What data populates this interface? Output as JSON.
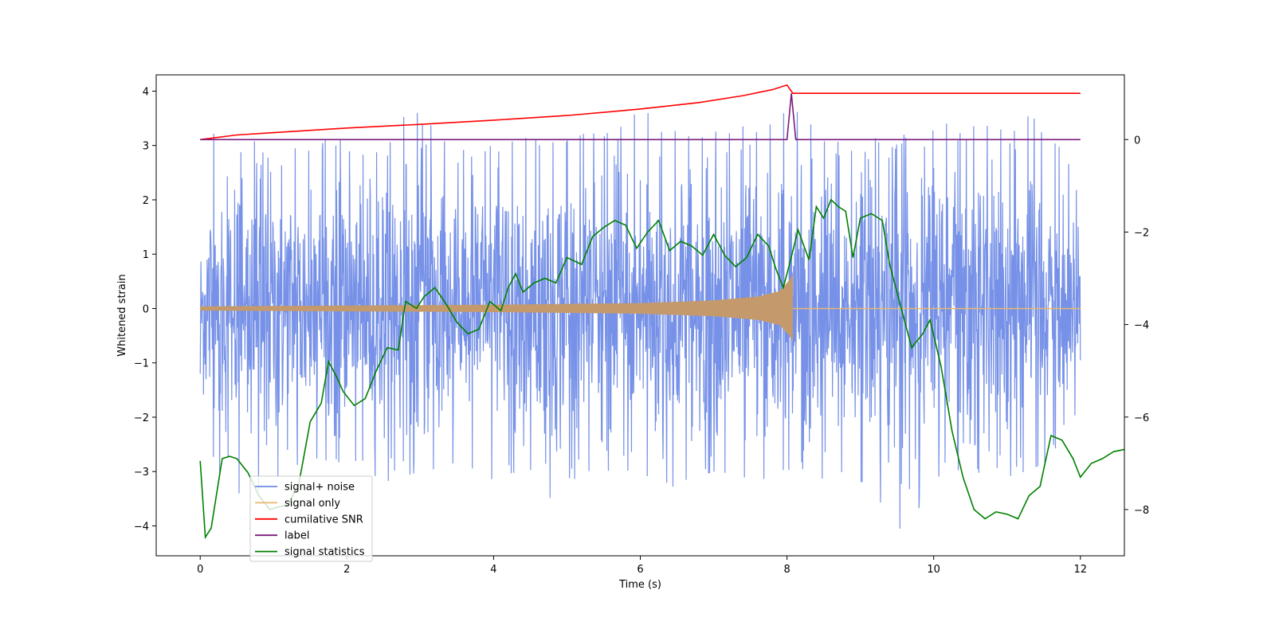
{
  "chart_data": {
    "type": "line",
    "title": "",
    "xlabel": "Time (s)",
    "ylabel": "Whitened strain",
    "ylabel_right": "",
    "xlim": [
      -0.6,
      12.6
    ],
    "ylim": [
      -4.55,
      4.3
    ],
    "ylim_right": [
      -9.0,
      1.4
    ],
    "xticks": [
      0,
      2,
      4,
      6,
      8,
      10,
      12
    ],
    "yticks": [
      -4,
      -3,
      -2,
      -1,
      0,
      1,
      2,
      3,
      4
    ],
    "yticks_right": [
      -8,
      -6,
      -4,
      -2,
      0
    ],
    "grid": false,
    "legend_position": "lower-left",
    "series": [
      {
        "name": "signal+ noise",
        "axis": "left",
        "color": "#6f8be6",
        "x_range": [
          0,
          12
        ],
        "envelope_upper": [
          [
            0.0,
            1.8
          ],
          [
            0.12,
            3.55
          ],
          [
            0.4,
            2.5
          ],
          [
            0.65,
            3.38
          ],
          [
            1.0,
            2.7
          ],
          [
            1.4,
            3.1
          ],
          [
            2.0,
            3.1
          ],
          [
            2.5,
            3.0
          ],
          [
            2.9,
            3.8
          ],
          [
            3.5,
            2.9
          ],
          [
            4.0,
            3.0
          ],
          [
            4.5,
            3.2
          ],
          [
            5.0,
            3.1
          ],
          [
            5.6,
            3.4
          ],
          [
            6.0,
            3.8
          ],
          [
            6.6,
            3.2
          ],
          [
            7.3,
            3.3
          ],
          [
            8.0,
            3.8
          ],
          [
            8.5,
            3.3
          ],
          [
            9.0,
            3.1
          ],
          [
            9.6,
            3.2
          ],
          [
            10.0,
            3.5
          ],
          [
            10.8,
            3.4
          ],
          [
            11.3,
            3.6
          ],
          [
            11.7,
            3.0
          ],
          [
            12.0,
            2.3
          ]
        ],
        "envelope_lower": [
          [
            0.0,
            -1.2
          ],
          [
            0.2,
            -2.9
          ],
          [
            0.5,
            -3.6
          ],
          [
            0.8,
            -3.4
          ],
          [
            1.2,
            -3.0
          ],
          [
            1.6,
            -2.9
          ],
          [
            2.0,
            -2.8
          ],
          [
            2.5,
            -3.2
          ],
          [
            3.0,
            -3.0
          ],
          [
            3.5,
            -2.9
          ],
          [
            4.0,
            -3.4
          ],
          [
            4.4,
            -3.0
          ],
          [
            4.78,
            -3.6
          ],
          [
            5.2,
            -3.0
          ],
          [
            5.8,
            -3.2
          ],
          [
            6.4,
            -3.3
          ],
          [
            7.0,
            -3.0
          ],
          [
            7.5,
            -3.2
          ],
          [
            8.0,
            -3.1
          ],
          [
            8.5,
            -3.3
          ],
          [
            9.0,
            -3.2
          ],
          [
            9.6,
            -4.15
          ],
          [
            10.0,
            -3.2
          ],
          [
            10.5,
            -3.0
          ],
          [
            11.0,
            -3.1
          ],
          [
            11.5,
            -2.9
          ],
          [
            12.0,
            -2.0
          ]
        ]
      },
      {
        "name": "signal only",
        "axis": "left",
        "color": "#e8b86d",
        "fill_color": "#c49a6c",
        "x_range": [
          0,
          12
        ],
        "chirp_end": 8.08,
        "amplitude_points": [
          [
            0.0,
            0.04
          ],
          [
            4.0,
            0.07
          ],
          [
            6.0,
            0.1
          ],
          [
            7.0,
            0.15
          ],
          [
            7.6,
            0.22
          ],
          [
            7.9,
            0.32
          ],
          [
            8.05,
            0.55
          ],
          [
            8.08,
            0.65
          ]
        ]
      },
      {
        "name": "cumilative SNR",
        "axis": "right",
        "color": "#ff0000",
        "points": [
          [
            0.0,
            0.0
          ],
          [
            0.5,
            0.1
          ],
          [
            1.0,
            0.15
          ],
          [
            2.0,
            0.25
          ],
          [
            3.0,
            0.33
          ],
          [
            4.0,
            0.42
          ],
          [
            5.0,
            0.52
          ],
          [
            6.0,
            0.66
          ],
          [
            6.8,
            0.8
          ],
          [
            7.4,
            0.95
          ],
          [
            7.8,
            1.08
          ],
          [
            8.0,
            1.18
          ],
          [
            8.08,
            1.0
          ],
          [
            12.0,
            1.0
          ]
        ]
      },
      {
        "name": "label",
        "axis": "right",
        "color": "#7b1a7b",
        "points": [
          [
            0.0,
            0.0
          ],
          [
            8.0,
            0.0
          ],
          [
            8.06,
            1.0
          ],
          [
            8.12,
            0.0
          ],
          [
            12.0,
            0.0
          ]
        ]
      },
      {
        "name": "signal statistics",
        "axis": "right",
        "color": "#008000",
        "points": [
          [
            0.0,
            -6.95
          ],
          [
            0.07,
            -8.6
          ],
          [
            0.15,
            -8.4
          ],
          [
            0.3,
            -6.9
          ],
          [
            0.4,
            -6.85
          ],
          [
            0.5,
            -6.9
          ],
          [
            0.65,
            -7.2
          ],
          [
            0.8,
            -7.7
          ],
          [
            0.95,
            -8.0
          ],
          [
            1.05,
            -7.95
          ],
          [
            1.2,
            -7.9
          ],
          [
            1.35,
            -7.4
          ],
          [
            1.5,
            -6.1
          ],
          [
            1.65,
            -5.7
          ],
          [
            1.75,
            -4.8
          ],
          [
            1.85,
            -5.1
          ],
          [
            1.95,
            -5.45
          ],
          [
            2.1,
            -5.75
          ],
          [
            2.25,
            -5.6
          ],
          [
            2.4,
            -5.0
          ],
          [
            2.55,
            -4.5
          ],
          [
            2.7,
            -4.55
          ],
          [
            2.8,
            -3.5
          ],
          [
            2.95,
            -3.65
          ],
          [
            3.05,
            -3.4
          ],
          [
            3.2,
            -3.2
          ],
          [
            3.35,
            -3.55
          ],
          [
            3.5,
            -3.95
          ],
          [
            3.65,
            -4.2
          ],
          [
            3.8,
            -4.1
          ],
          [
            3.95,
            -3.5
          ],
          [
            4.1,
            -3.7
          ],
          [
            4.2,
            -3.2
          ],
          [
            4.3,
            -2.9
          ],
          [
            4.4,
            -3.3
          ],
          [
            4.55,
            -3.1
          ],
          [
            4.7,
            -3.0
          ],
          [
            4.85,
            -3.1
          ],
          [
            5.0,
            -2.55
          ],
          [
            5.2,
            -2.7
          ],
          [
            5.35,
            -2.1
          ],
          [
            5.5,
            -1.9
          ],
          [
            5.65,
            -1.75
          ],
          [
            5.8,
            -1.85
          ],
          [
            5.95,
            -2.35
          ],
          [
            6.1,
            -2.0
          ],
          [
            6.25,
            -1.75
          ],
          [
            6.4,
            -2.4
          ],
          [
            6.55,
            -2.2
          ],
          [
            6.7,
            -2.3
          ],
          [
            6.85,
            -2.5
          ],
          [
            7.0,
            -2.05
          ],
          [
            7.15,
            -2.5
          ],
          [
            7.3,
            -2.75
          ],
          [
            7.45,
            -2.55
          ],
          [
            7.6,
            -2.05
          ],
          [
            7.75,
            -2.3
          ],
          [
            7.85,
            -2.8
          ],
          [
            7.95,
            -3.2
          ],
          [
            8.05,
            -2.6
          ],
          [
            8.15,
            -1.95
          ],
          [
            8.3,
            -2.6
          ],
          [
            8.4,
            -1.45
          ],
          [
            8.5,
            -1.7
          ],
          [
            8.6,
            -1.3
          ],
          [
            8.7,
            -1.45
          ],
          [
            8.8,
            -1.55
          ],
          [
            8.9,
            -2.55
          ],
          [
            9.0,
            -1.7
          ],
          [
            9.15,
            -1.6
          ],
          [
            9.3,
            -1.75
          ],
          [
            9.4,
            -2.7
          ],
          [
            9.55,
            -3.6
          ],
          [
            9.7,
            -4.5
          ],
          [
            9.85,
            -4.2
          ],
          [
            9.95,
            -3.9
          ],
          [
            10.1,
            -4.9
          ],
          [
            10.25,
            -6.3
          ],
          [
            10.4,
            -7.3
          ],
          [
            10.55,
            -8.0
          ],
          [
            10.7,
            -8.2
          ],
          [
            10.85,
            -8.05
          ],
          [
            11.0,
            -8.1
          ],
          [
            11.15,
            -8.2
          ],
          [
            11.3,
            -7.7
          ],
          [
            11.45,
            -7.5
          ],
          [
            11.6,
            -6.4
          ],
          [
            11.75,
            -6.5
          ],
          [
            11.9,
            -6.9
          ],
          [
            12.0,
            -7.3
          ],
          [
            12.15,
            -7.0
          ],
          [
            12.3,
            -6.9
          ],
          [
            12.45,
            -6.75
          ],
          [
            12.6,
            -6.7
          ]
        ]
      }
    ]
  },
  "colors": {
    "plot_bg": "#ffffff",
    "axes": "#000000"
  }
}
